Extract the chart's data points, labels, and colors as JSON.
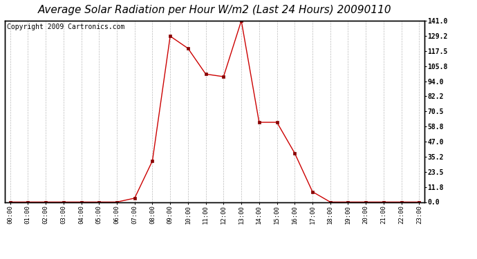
{
  "title": "Average Solar Radiation per Hour W/m2 (Last 24 Hours) 20090110",
  "copyright": "Copyright 2009 Cartronics.com",
  "x_labels": [
    "00:00",
    "01:00",
    "02:00",
    "03:00",
    "04:00",
    "05:00",
    "06:00",
    "07:00",
    "08:00",
    "09:00",
    "10:00",
    "11:00",
    "12:00",
    "13:00",
    "14:00",
    "15:00",
    "16:00",
    "17:00",
    "18:00",
    "19:00",
    "20:00",
    "21:00",
    "22:00",
    "23:00"
  ],
  "hours": [
    0,
    1,
    2,
    3,
    4,
    5,
    6,
    7,
    8,
    9,
    10,
    11,
    12,
    13,
    14,
    15,
    16,
    17,
    18,
    19,
    20,
    21,
    22,
    23
  ],
  "values": [
    0.0,
    0.0,
    0.0,
    0.0,
    0.0,
    0.0,
    0.0,
    3.0,
    32.0,
    129.0,
    119.5,
    99.5,
    97.5,
    141.0,
    62.0,
    62.0,
    38.0,
    8.0,
    0.0,
    0.0,
    0.0,
    0.0,
    0.0,
    0.0
  ],
  "y_ticks": [
    0.0,
    11.8,
    23.5,
    35.2,
    47.0,
    58.8,
    70.5,
    82.2,
    94.0,
    105.8,
    117.5,
    129.2,
    141.0
  ],
  "y_max": 141.0,
  "y_min": 0.0,
  "line_color": "#cc0000",
  "marker_color": "#880000",
  "bg_color": "#ffffff",
  "grid_color": "#bbbbbb",
  "title_fontsize": 11,
  "copyright_fontsize": 7
}
